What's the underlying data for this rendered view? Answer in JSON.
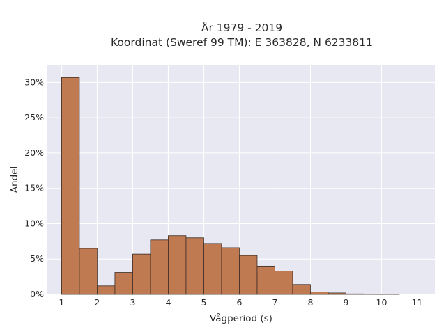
{
  "chart_data": {
    "type": "bar",
    "title_line1": "År 1979 - 2019",
    "title_line2": "Koordinat (Sweref 99 TM): E 363828, N 6233811",
    "xlabel": "Vågperiod (s)",
    "ylabel": "Andel",
    "x_ticks": [
      "1",
      "2",
      "3",
      "4",
      "5",
      "6",
      "7",
      "8",
      "9",
      "10",
      "11"
    ],
    "y_ticks": [
      "0%",
      "5%",
      "10%",
      "15%",
      "20%",
      "25%",
      "30%"
    ],
    "xlim": [
      0.6,
      11.5
    ],
    "ylim": [
      0,
      32.5
    ],
    "bin_width": 0.5,
    "bin_starts": [
      1.0,
      1.5,
      2.0,
      2.5,
      3.0,
      3.5,
      4.0,
      4.5,
      5.0,
      5.5,
      6.0,
      6.5,
      7.0,
      7.5,
      8.0,
      8.5,
      9.0,
      9.5,
      10.0
    ],
    "values": [
      30.7,
      6.5,
      1.2,
      3.1,
      5.7,
      7.7,
      8.3,
      8.0,
      7.2,
      6.6,
      5.5,
      4.0,
      3.3,
      1.4,
      0.35,
      0.2,
      0.07,
      0.05,
      0.03
    ],
    "grid": true,
    "colors": {
      "bar": "#bf7a52",
      "bar_edge": "#3a2a22",
      "plot_bg": "#e8e8f2",
      "grid": "#ffffff"
    }
  }
}
